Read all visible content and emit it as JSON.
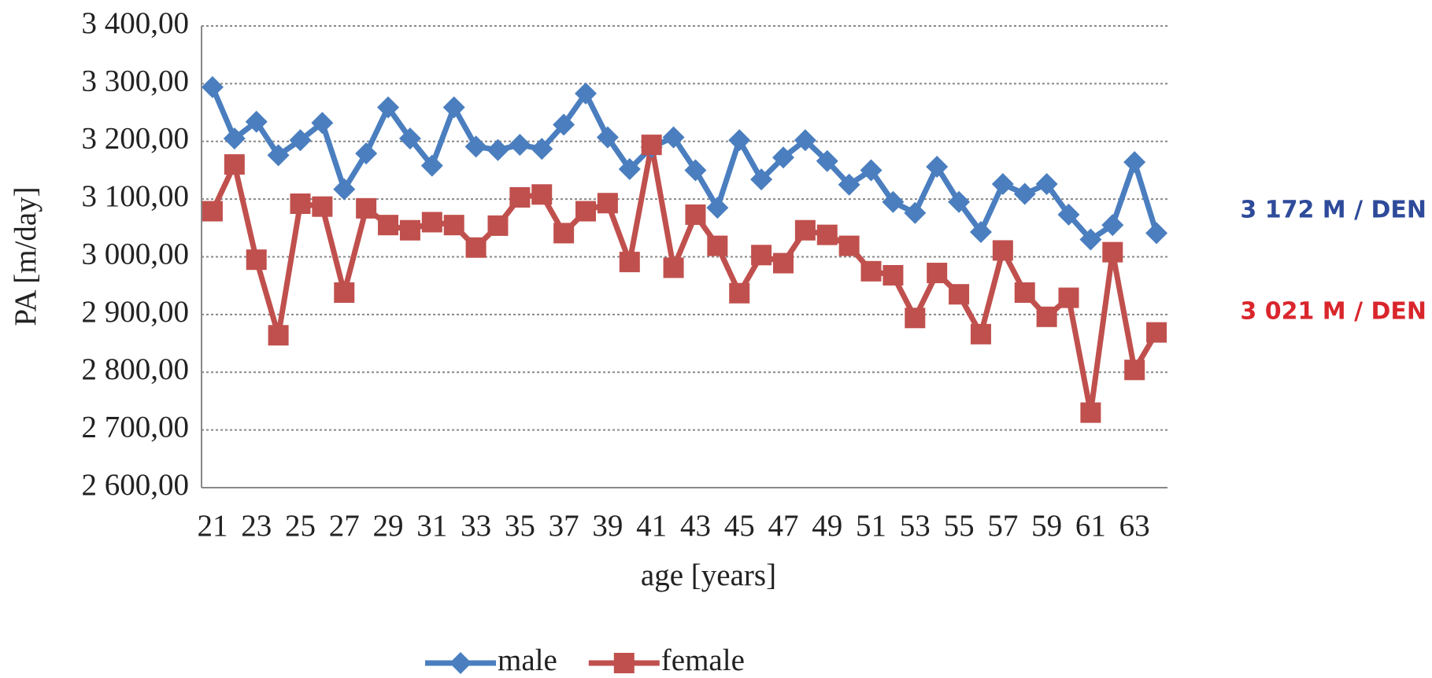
{
  "chart_data": {
    "type": "line",
    "y_label": "PA [m/day]",
    "x_label": "age [years]",
    "categories": [
      21,
      null,
      23,
      null,
      25,
      null,
      27,
      null,
      29,
      null,
      31,
      null,
      33,
      null,
      35,
      null,
      37,
      null,
      39,
      null,
      41,
      null,
      43,
      null,
      45,
      null,
      47,
      null,
      49,
      null,
      51,
      null,
      53,
      null,
      55,
      null,
      57,
      null,
      59,
      null,
      61,
      null,
      63,
      null
    ],
    "series": [
      {
        "name": "male",
        "color": "#4a7ebf",
        "marker": "diamond",
        "values": [
          3294,
          3205,
          3234,
          3176,
          3202,
          3232,
          3117,
          3179,
          3259,
          3205,
          3158,
          3259,
          3191,
          3185,
          3194,
          3187,
          3229,
          3283,
          3207,
          3152,
          3190,
          3207,
          3150,
          3085,
          3202,
          3134,
          3172,
          3202,
          3166,
          3125,
          3150,
          3095,
          3076,
          3156,
          3095,
          3043,
          3126,
          3109,
          3126,
          3073,
          3030,
          3055,
          3164,
          3041
        ]
      },
      {
        "name": "female",
        "color": "#c0504d",
        "marker": "square",
        "values": [
          3079,
          3160,
          2995,
          2864,
          3092,
          3087,
          2938,
          3084,
          3055,
          3046,
          3060,
          3055,
          3016,
          3054,
          3103,
          3108,
          3041,
          3079,
          3093,
          2991,
          3194,
          2981,
          3073,
          3019,
          2937,
          3003,
          2989,
          3046,
          3038,
          3019,
          2975,
          2968,
          2894,
          2972,
          2935,
          2866,
          3011,
          2938,
          2896,
          2929,
          2730,
          3008,
          2804,
          2869
        ]
      }
    ],
    "ylim": [
      2600,
      3400
    ],
    "yticks": [
      {
        "value": 2600,
        "label": "2 600,00"
      },
      {
        "value": 2700,
        "label": "2 700,00"
      },
      {
        "value": 2800,
        "label": "2 800,00"
      },
      {
        "value": 2900,
        "label": "2 900,00"
      },
      {
        "value": 3000,
        "label": "3 000,00"
      },
      {
        "value": 3100,
        "label": "3 100,00"
      },
      {
        "value": 3200,
        "label": "3 200,00"
      },
      {
        "value": 3300,
        "label": "3 300,00"
      },
      {
        "value": 3400,
        "label": "3 400,00"
      }
    ],
    "grid": true,
    "legend": "bottom",
    "annotations": [
      {
        "text": "3 172 M / DEN",
        "color": "#2e4a9a"
      },
      {
        "text": "3 021 M / DEN",
        "color": "#d9262c"
      }
    ]
  }
}
